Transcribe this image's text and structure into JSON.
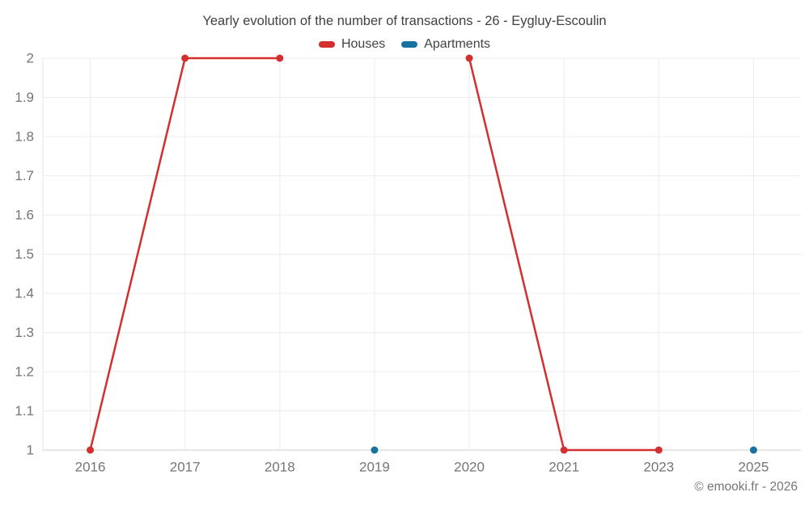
{
  "title": "Yearly evolution of the number of transactions - 26 - Eygluy-Escoulin",
  "legend": [
    {
      "label": "Houses",
      "color": "#d32f2f"
    },
    {
      "label": "Apartments",
      "color": "#17729f"
    }
  ],
  "footer": {
    "copyright": "© emooki.fr - 2026"
  },
  "colors": {
    "grid": "#ececec",
    "x_axis_line": "#cfcfcf",
    "y_axis_line": "#e6e6e6",
    "tick_label": "#757575",
    "title_text": "#424242"
  },
  "chart_data": {
    "type": "line",
    "title": "Yearly evolution of the number of transactions - 26 - Eygluy-Escoulin",
    "xlabel": "",
    "ylabel": "",
    "categories": [
      "2016",
      "2017",
      "2018",
      "2019",
      "2020",
      "2021",
      "2023",
      "2025"
    ],
    "series": [
      {
        "name": "Houses",
        "color": "#d32f2f",
        "values": [
          1,
          2,
          2,
          null,
          2,
          1,
          1,
          null
        ]
      },
      {
        "name": "Apartments",
        "color": "#17729f",
        "values": [
          null,
          null,
          null,
          1,
          null,
          null,
          null,
          1
        ]
      }
    ],
    "ylim": [
      1,
      2
    ],
    "yticks": [
      1,
      1.1,
      1.2,
      1.3,
      1.4,
      1.5,
      1.6,
      1.7,
      1.8,
      1.9,
      2
    ],
    "grid": true,
    "legend_position": "top",
    "marker_radius": 4.5,
    "line_width": 2.5
  }
}
